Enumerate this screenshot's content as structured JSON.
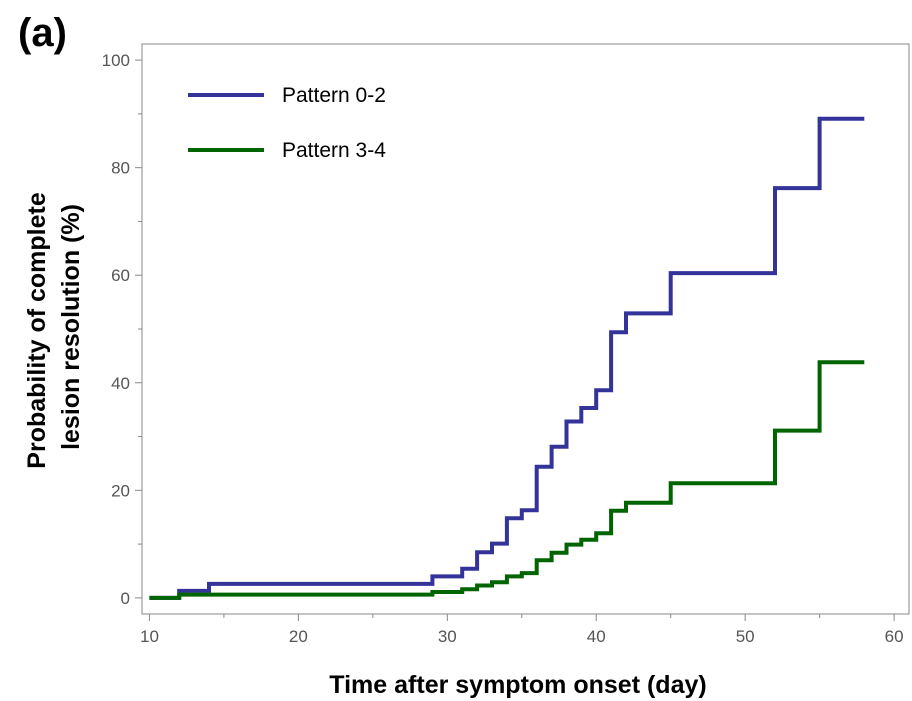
{
  "chart_data": {
    "type": "line",
    "step": true,
    "panel_label": "(a)",
    "title": "",
    "xlabel": "Time after symptom onset (day)",
    "ylabel_lines": [
      "Probability of complete",
      "lesion resolution (%)"
    ],
    "xlim": [
      9.5,
      61
    ],
    "ylim": [
      -3,
      103
    ],
    "xticks": [
      10,
      20,
      30,
      40,
      50,
      60
    ],
    "yticks": [
      0,
      20,
      40,
      60,
      80,
      100
    ],
    "grid": false,
    "legend_position": "top-left",
    "series": [
      {
        "name": "Pattern 0-2",
        "color": "#333399",
        "x": [
          10,
          12,
          14,
          29,
          31,
          32,
          33,
          34,
          35,
          36,
          37,
          38,
          39,
          40,
          41,
          42,
          45,
          52,
          55,
          58
        ],
        "y": [
          0,
          1.3,
          2.6,
          4.0,
          5.4,
          8.5,
          10.1,
          14.8,
          16.3,
          24.4,
          28.1,
          32.8,
          35.3,
          38.6,
          49.4,
          52.9,
          60.4,
          76.2,
          89.1,
          89.1
        ]
      },
      {
        "name": "Pattern 3-4",
        "color": "#006400",
        "x": [
          10,
          12,
          29,
          31,
          32,
          33,
          34,
          35,
          36,
          37,
          38,
          39,
          40,
          41,
          42,
          45,
          52,
          55,
          58
        ],
        "y": [
          0,
          0.6,
          1.1,
          1.6,
          2.3,
          2.9,
          4.0,
          4.6,
          7.0,
          8.4,
          9.9,
          10.8,
          12.0,
          16.2,
          17.7,
          21.3,
          31.1,
          43.8,
          43.8
        ]
      }
    ]
  }
}
